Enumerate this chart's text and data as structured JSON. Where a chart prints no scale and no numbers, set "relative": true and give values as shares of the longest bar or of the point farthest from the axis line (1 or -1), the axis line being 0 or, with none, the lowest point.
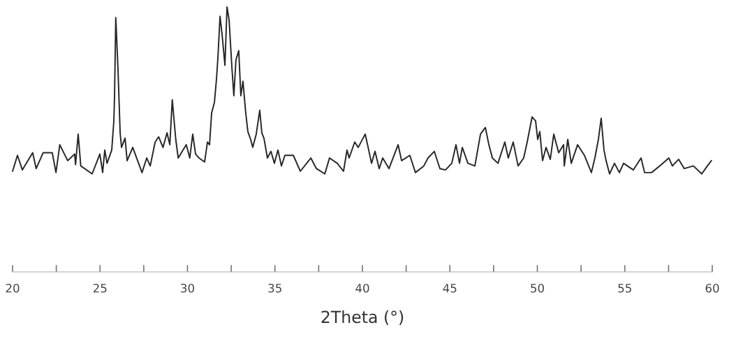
{
  "chart_data": {
    "type": "line",
    "relative": true,
    "xlabel": "2Theta (°)",
    "color": "#262626",
    "xlim": [
      20,
      60
    ],
    "xticks": [
      20,
      {
        "value": 22.5,
        "label": null
      },
      25,
      {
        "value": 27.5,
        "label": null
      },
      30,
      {
        "value": 32.5,
        "label": null
      },
      35,
      {
        "value": 37.5,
        "label": null
      },
      40,
      {
        "value": 42.5,
        "label": null
      },
      45,
      {
        "value": 47.5,
        "label": null
      },
      50,
      {
        "value": 52.5,
        "label": null
      },
      55,
      {
        "value": 57.5,
        "label": null
      },
      60
    ],
    "x": [
      20.0,
      20.28,
      20.56,
      21.15,
      21.35,
      21.75,
      22.27,
      22.48,
      22.7,
      23.15,
      23.55,
      23.6,
      23.75,
      23.9,
      24.55,
      24.99,
      25.15,
      25.27,
      25.4,
      25.67,
      25.79,
      25.83,
      25.9,
      25.95,
      26.03,
      26.15,
      26.23,
      26.43,
      26.55,
      26.87,
      27.4,
      27.67,
      27.87,
      28.15,
      28.35,
      28.6,
      28.83,
      28.99,
      29.13,
      29.33,
      29.47,
      29.93,
      30.13,
      30.3,
      30.46,
      30.66,
      30.98,
      31.14,
      31.26,
      31.38,
      31.54,
      31.66,
      31.74,
      31.86,
      31.98,
      32.14,
      32.26,
      32.38,
      32.54,
      32.65,
      32.77,
      32.93,
      33.05,
      33.17,
      33.33,
      33.45,
      33.61,
      33.73,
      33.93,
      34.13,
      34.25,
      34.37,
      34.57,
      34.77,
      34.97,
      35.17,
      35.37,
      35.57,
      36.05,
      36.45,
      37.05,
      37.37,
      37.85,
      38.12,
      38.56,
      38.92,
      39.12,
      39.24,
      39.56,
      39.76,
      40.16,
      40.36,
      40.52,
      40.72,
      40.96,
      41.16,
      41.52,
      42.04,
      42.24,
      42.71,
      43.03,
      43.51,
      43.75,
      44.11,
      44.43,
      44.75,
      45.11,
      45.35,
      45.55,
      45.71,
      46.03,
      46.43,
      46.75,
      47.03,
      47.23,
      47.43,
      47.75,
      48.14,
      48.34,
      48.62,
      48.9,
      49.22,
      49.42,
      49.7,
      49.9,
      50.02,
      50.14,
      50.3,
      50.5,
      50.74,
      50.94,
      51.22,
      51.5,
      51.54,
      51.74,
      51.94,
      52.3,
      52.69,
      53.09,
      53.29,
      53.49,
      53.65,
      53.81,
      53.93,
      54.13,
      54.41,
      54.69,
      54.93,
      55.49,
      55.93,
      56.13,
      56.53,
      57.09,
      57.52,
      57.72,
      58.08,
      58.4,
      58.92,
      59.4,
      59.72,
      59.95
    ],
    "values": [
      0.38,
      0.44,
      0.385,
      0.45,
      0.39,
      0.45,
      0.45,
      0.375,
      0.48,
      0.42,
      0.445,
      0.405,
      0.52,
      0.4,
      0.37,
      0.445,
      0.375,
      0.46,
      0.41,
      0.46,
      0.57,
      0.665,
      0.96,
      0.885,
      0.76,
      0.525,
      0.47,
      0.505,
      0.42,
      0.47,
      0.375,
      0.43,
      0.4,
      0.49,
      0.51,
      0.47,
      0.525,
      0.48,
      0.65,
      0.5,
      0.43,
      0.48,
      0.43,
      0.52,
      0.445,
      0.43,
      0.415,
      0.49,
      0.48,
      0.6,
      0.64,
      0.73,
      0.81,
      0.965,
      0.895,
      0.78,
      1.0,
      0.95,
      0.77,
      0.665,
      0.8,
      0.835,
      0.665,
      0.72,
      0.6,
      0.53,
      0.5,
      0.47,
      0.52,
      0.61,
      0.525,
      0.505,
      0.43,
      0.455,
      0.41,
      0.46,
      0.4,
      0.44,
      0.44,
      0.38,
      0.43,
      0.39,
      0.37,
      0.43,
      0.41,
      0.38,
      0.46,
      0.43,
      0.49,
      0.47,
      0.52,
      0.46,
      0.41,
      0.455,
      0.39,
      0.43,
      0.39,
      0.48,
      0.42,
      0.44,
      0.375,
      0.4,
      0.43,
      0.455,
      0.39,
      0.385,
      0.41,
      0.48,
      0.41,
      0.47,
      0.41,
      0.4,
      0.52,
      0.545,
      0.48,
      0.43,
      0.41,
      0.49,
      0.43,
      0.49,
      0.4,
      0.43,
      0.49,
      0.585,
      0.57,
      0.5,
      0.53,
      0.42,
      0.47,
      0.425,
      0.52,
      0.45,
      0.48,
      0.4,
      0.5,
      0.41,
      0.48,
      0.44,
      0.375,
      0.43,
      0.5,
      0.58,
      0.46,
      0.42,
      0.37,
      0.41,
      0.375,
      0.41,
      0.385,
      0.43,
      0.375,
      0.375,
      0.405,
      0.43,
      0.4,
      0.425,
      0.39,
      0.4,
      0.37,
      0.4,
      0.42
    ]
  }
}
